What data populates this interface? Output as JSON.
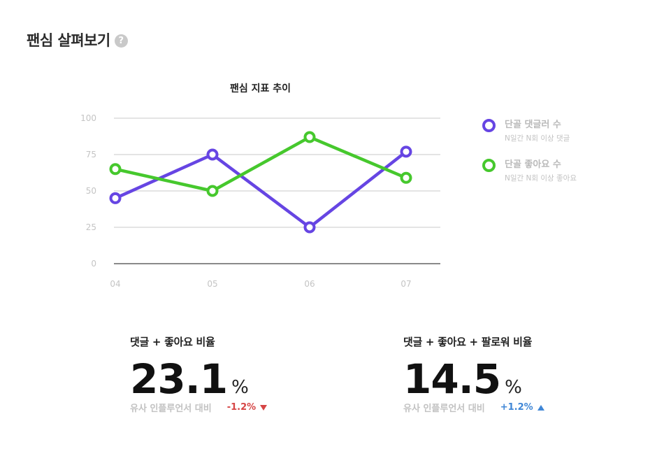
{
  "header": {
    "title": "팬심 살펴보기",
    "help_icon": "?"
  },
  "chart_data": {
    "type": "line",
    "title": "팬심 지표 추이",
    "categories": [
      "04",
      "05",
      "06",
      "07"
    ],
    "ylim": [
      0,
      100
    ],
    "yticks": [
      "0",
      "25",
      "50",
      "75",
      "100"
    ],
    "grid": true,
    "legend_position": "right",
    "series": [
      {
        "name": "단골 댓글러 수",
        "sub": "N일간 N회 이상 댓글",
        "color": "#6645e3",
        "values": [
          45,
          75,
          25,
          77
        ]
      },
      {
        "name": "단골 좋아요 수",
        "sub": "N일간 N회 이상 좋아요",
        "color": "#46c82d",
        "values": [
          65,
          50,
          87,
          59
        ]
      }
    ]
  },
  "stats": [
    {
      "label": "댓글 + 좋아요 비율",
      "value": "23.1",
      "unit": "%",
      "compare_label": "유사 인플루언서 대비",
      "delta": "-1.2%",
      "direction": "down"
    },
    {
      "label": "댓글 + 좋아요 + 팔로워 비율",
      "value": "14.5",
      "unit": "%",
      "compare_label": "유사 인플루언서 대비",
      "delta": "+1.2%",
      "direction": "up"
    }
  ]
}
